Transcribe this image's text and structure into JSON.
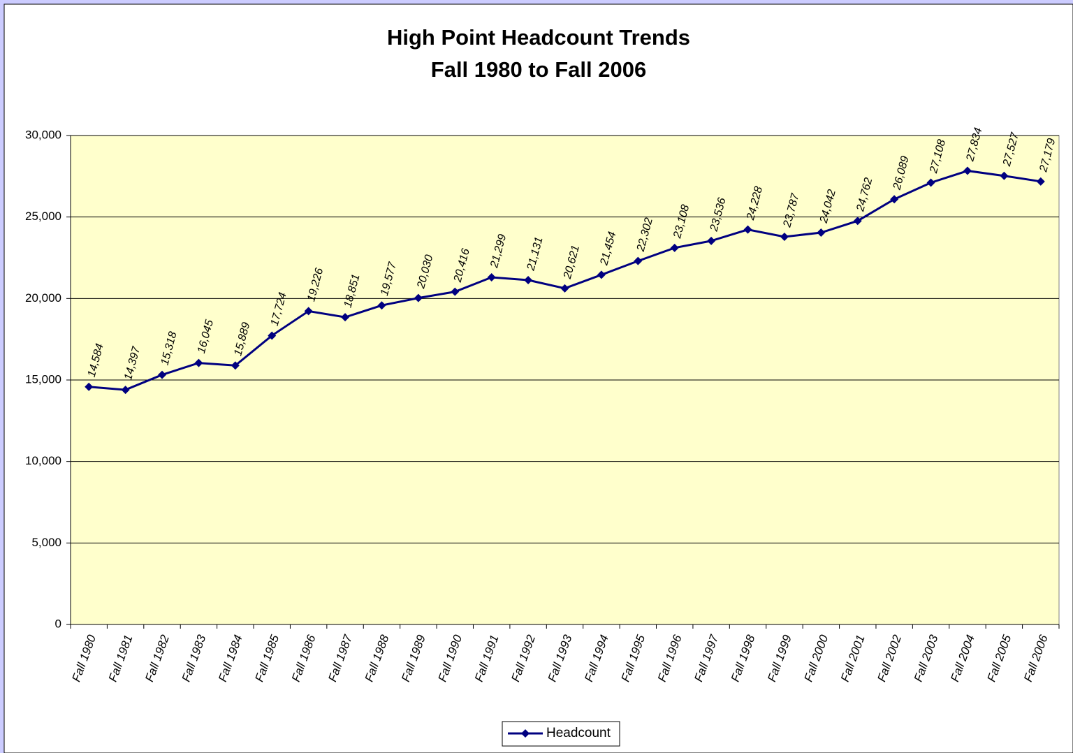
{
  "chart_data": {
    "type": "line",
    "title": "High Point Headcount Trends",
    "subtitle": "Fall 1980 to Fall 2006",
    "categories": [
      "Fall 1980",
      "Fall 1981",
      "Fall 1982",
      "Fall 1983",
      "Fall 1984",
      "Fall 1985",
      "Fall 1986",
      "Fall 1987",
      "Fall 1988",
      "Fall 1989",
      "Fall 1990",
      "Fall 1991",
      "Fall 1992",
      "Fall 1993",
      "Fall 1994",
      "Fall 1995",
      "Fall 1996",
      "Fall 1997",
      "Fall 1998",
      "Fall 1999",
      "Fall 2000",
      "Fall 2001",
      "Fall 2002",
      "Fall 2003",
      "Fall 2004",
      "Fall 2005",
      "Fall 2006"
    ],
    "series": [
      {
        "name": "Headcount",
        "color": "#000080",
        "values": [
          14584,
          14397,
          15318,
          16045,
          15889,
          17724,
          19226,
          18851,
          19577,
          20030,
          20416,
          21299,
          21131,
          20621,
          21454,
          22302,
          23108,
          23536,
          24228,
          23787,
          24042,
          24762,
          26089,
          27108,
          27834,
          27527,
          27179
        ],
        "value_labels": [
          "14,584",
          "14,397",
          "15,318",
          "16,045",
          "15,889",
          "17,724",
          "19,226",
          "18,851",
          "19,577",
          "20,030",
          "20,416",
          "21,299",
          "21,131",
          "20,621",
          "21,454",
          "22,302",
          "23,108",
          "23,536",
          "24,228",
          "23,787",
          "24,042",
          "24,762",
          "26,089",
          "27,108",
          "27,834",
          "27,527",
          "27,179"
        ]
      }
    ],
    "ylim": [
      0,
      30000
    ],
    "yticks": [
      0,
      {
        "value": 5000,
        "label": "5,000"
      },
      {
        "value": 10000,
        "label": "10,000"
      },
      {
        "value": 15000,
        "label": "15,000"
      },
      {
        "value": 20000,
        "label": "20,000"
      },
      {
        "value": 25000,
        "label": "25,000"
      },
      {
        "value": 30000,
        "label": "30,000"
      }
    ],
    "grid": true,
    "plot_background": "#ffffcc",
    "legend": "bottom"
  }
}
